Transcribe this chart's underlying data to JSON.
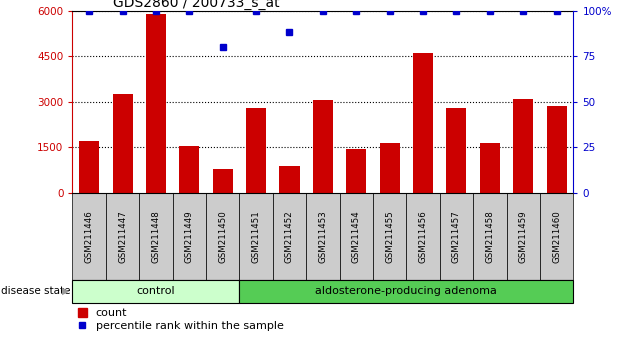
{
  "title": "GDS2860 / 200733_s_at",
  "samples": [
    "GSM211446",
    "GSM211447",
    "GSM211448",
    "GSM211449",
    "GSM211450",
    "GSM211451",
    "GSM211452",
    "GSM211453",
    "GSM211454",
    "GSM211455",
    "GSM211456",
    "GSM211457",
    "GSM211458",
    "GSM211459",
    "GSM211460"
  ],
  "counts": [
    1700,
    3250,
    5900,
    1550,
    800,
    2800,
    900,
    3050,
    1450,
    1650,
    4600,
    2800,
    1650,
    3100,
    2850
  ],
  "percentiles": [
    100,
    100,
    100,
    100,
    80,
    100,
    88,
    100,
    100,
    100,
    100,
    100,
    100,
    100,
    100
  ],
  "control_count": 5,
  "ylim_left": [
    0,
    6000
  ],
  "ylim_right": [
    0,
    100
  ],
  "yticks_left": [
    0,
    1500,
    3000,
    4500,
    6000
  ],
  "yticks_right": [
    0,
    25,
    50,
    75,
    100
  ],
  "bar_color": "#cc0000",
  "dot_color": "#0000cc",
  "control_color": "#ccffcc",
  "adenoma_color": "#55cc55",
  "bg_color": "#cccccc",
  "title_fontsize": 10,
  "tick_fontsize": 7.5,
  "sample_fontsize": 6.2
}
